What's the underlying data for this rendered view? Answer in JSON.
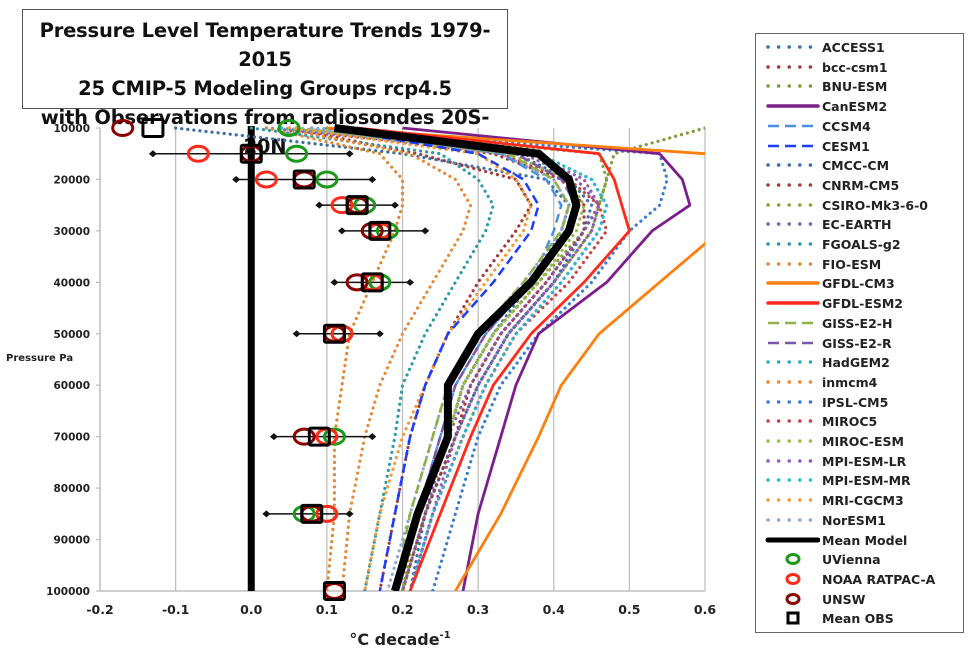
{
  "chart_data": {
    "type": "line",
    "title": [
      "Pressure Level Temperature Trends 1979-2015",
      "25 CMIP-5 Modeling Groups rcp4.5",
      "with Observations from radiosondes 20S-20N"
    ],
    "xlabel": "°C decade",
    "xlabel_superscript": "-1",
    "ylabel": "Pressure Pa",
    "xlim": [
      -0.2,
      0.6
    ],
    "ylim": [
      10000,
      100000
    ],
    "y_inverted": true,
    "x_ticks": [
      "-0.2",
      "-0.1",
      "0.0",
      "0.1",
      "0.2",
      "0.3",
      "0.4",
      "0.5",
      "0.6"
    ],
    "y_ticks": [
      "10000",
      "20000",
      "30000",
      "40000",
      "50000",
      "60000",
      "70000",
      "80000",
      "90000",
      "100000"
    ],
    "grid": "vertical",
    "legend_position": "right",
    "pressure_levels": [
      10000,
      15000,
      20000,
      25000,
      30000,
      40000,
      50000,
      70000,
      85000,
      100000
    ],
    "model_levels": [
      10000,
      15000,
      20000,
      25000,
      30000,
      40000,
      50000,
      60000,
      70000,
      85000,
      100000
    ],
    "series": [
      {
        "name": "ACCESS1",
        "color": "#3d6fa8",
        "style": "dotted",
        "values": [
          -0.1,
          0.2,
          0.39,
          0.42,
          0.41,
          0.37,
          0.32,
          0.28,
          0.26,
          0.22,
          0.19
        ]
      },
      {
        "name": "bcc-csm1",
        "color": "#a23b3b",
        "style": "dotted",
        "values": [
          0.05,
          0.22,
          0.35,
          0.37,
          0.35,
          0.3,
          0.26,
          0.23,
          0.21,
          0.19,
          0.17
        ]
      },
      {
        "name": "BNU-ESM",
        "color": "#7d9a3c",
        "style": "dotted",
        "values": [
          0.6,
          0.48,
          0.47,
          0.46,
          0.45,
          0.4,
          0.34,
          0.3,
          0.27,
          0.23,
          0.2
        ]
      },
      {
        "name": "CanESM2",
        "color": "#7b1f8a",
        "style": "solid",
        "values": [
          0.2,
          0.54,
          0.57,
          0.58,
          0.53,
          0.47,
          0.38,
          0.35,
          0.33,
          0.3,
          0.28
        ]
      },
      {
        "name": "CCSM4",
        "color": "#4a90e2",
        "style": "dashed",
        "values": [
          0.12,
          0.33,
          0.39,
          0.41,
          0.4,
          0.37,
          0.31,
          0.27,
          0.25,
          0.22,
          0.19
        ]
      },
      {
        "name": "CESM1",
        "color": "#1a3dff",
        "style": "dashed",
        "values": [
          0.1,
          0.3,
          0.36,
          0.38,
          0.37,
          0.32,
          0.26,
          0.23,
          0.21,
          0.19,
          0.17
        ]
      },
      {
        "name": "CMCC-CM",
        "color": "#3d6fa8",
        "style": "dotted",
        "values": [
          0.08,
          0.35,
          0.42,
          0.45,
          0.44,
          0.4,
          0.34,
          0.3,
          0.27,
          0.23,
          0.21
        ]
      },
      {
        "name": "CNRM-CM5",
        "color": "#a23b3b",
        "style": "dotted",
        "values": [
          0.06,
          0.32,
          0.41,
          0.44,
          0.44,
          0.39,
          0.33,
          0.29,
          0.27,
          0.23,
          0.2
        ]
      },
      {
        "name": "CSIRO-Mk3-6-0",
        "color": "#86a43d",
        "style": "dotted",
        "values": [
          0.1,
          0.46,
          0.47,
          0.46,
          0.44,
          0.38,
          0.32,
          0.28,
          0.26,
          0.22,
          0.2
        ]
      },
      {
        "name": "EC-EARTH",
        "color": "#8a5aa8",
        "style": "dotted",
        "values": [
          0.02,
          0.36,
          0.43,
          0.46,
          0.44,
          0.39,
          0.33,
          0.29,
          0.26,
          0.23,
          0.2
        ]
      },
      {
        "name": "FGOALS-g2",
        "color": "#2e9aab",
        "style": "dotted",
        "values": [
          0.0,
          0.25,
          0.3,
          0.32,
          0.31,
          0.27,
          0.23,
          0.2,
          0.19,
          0.17,
          0.15
        ]
      },
      {
        "name": "FIO-ESM",
        "color": "#e08a35",
        "style": "dotted",
        "values": [
          0.02,
          0.17,
          0.2,
          0.2,
          0.19,
          0.16,
          0.13,
          0.12,
          0.11,
          0.11,
          0.1
        ]
      },
      {
        "name": "GFDL-CM3",
        "color": "#ff7f0e",
        "style": "solid",
        "values": [
          0.1,
          0.6,
          0.7,
          0.7,
          0.62,
          0.54,
          0.46,
          0.41,
          0.38,
          0.33,
          0.27
        ]
      },
      {
        "name": "GFDL-ESM2",
        "color": "#ff2a1a",
        "style": "solid",
        "values": [
          0.14,
          0.46,
          0.48,
          0.49,
          0.5,
          0.44,
          0.37,
          0.32,
          0.29,
          0.25,
          0.21
        ]
      },
      {
        "name": "GISS-E2-H",
        "color": "#8fb14a",
        "style": "dashed",
        "values": [
          0.1,
          0.34,
          0.4,
          0.42,
          0.41,
          0.36,
          0.3,
          0.26,
          0.24,
          0.21,
          0.19
        ]
      },
      {
        "name": "GISS-E2-R",
        "color": "#7d55a8",
        "style": "dashed",
        "values": [
          0.1,
          0.35,
          0.41,
          0.43,
          0.42,
          0.37,
          0.31,
          0.27,
          0.25,
          0.22,
          0.19
        ]
      },
      {
        "name": "HadGEM2",
        "color": "#2eaac0",
        "style": "dotted",
        "values": [
          0.08,
          0.38,
          0.45,
          0.47,
          0.46,
          0.41,
          0.35,
          0.31,
          0.28,
          0.24,
          0.21
        ]
      },
      {
        "name": "inmcm4",
        "color": "#e8883a",
        "style": "dotted",
        "values": [
          0.04,
          0.21,
          0.27,
          0.29,
          0.28,
          0.24,
          0.2,
          0.17,
          0.15,
          0.13,
          0.12
        ]
      },
      {
        "name": "IPSL-CM5",
        "color": "#3a7ed1",
        "style": "dotted",
        "values": [
          0.08,
          0.54,
          0.55,
          0.54,
          0.5,
          0.45,
          0.38,
          0.33,
          0.3,
          0.27,
          0.24
        ]
      },
      {
        "name": "MIROC5",
        "color": "#c94545",
        "style": "dotted",
        "values": [
          0.06,
          0.33,
          0.42,
          0.46,
          0.47,
          0.42,
          0.35,
          0.31,
          0.28,
          0.24,
          0.21
        ]
      },
      {
        "name": "MIROC-ESM",
        "color": "#9bbb4e",
        "style": "dotted",
        "values": [
          0.06,
          0.34,
          0.42,
          0.44,
          0.43,
          0.38,
          0.32,
          0.28,
          0.26,
          0.22,
          0.19
        ]
      },
      {
        "name": "MPI-ESM-LR",
        "color": "#8e5cbf",
        "style": "dotted",
        "values": [
          0.04,
          0.37,
          0.44,
          0.46,
          0.45,
          0.4,
          0.34,
          0.3,
          0.27,
          0.24,
          0.21
        ]
      },
      {
        "name": "MPI-ESM-MR",
        "color": "#33b5d0",
        "style": "dotted",
        "values": [
          0.04,
          0.38,
          0.45,
          0.47,
          0.46,
          0.41,
          0.35,
          0.31,
          0.28,
          0.24,
          0.21
        ]
      },
      {
        "name": "MRI-CGCM3",
        "color": "#f29a3c",
        "style": "dotted",
        "values": [
          0.05,
          0.3,
          0.35,
          0.37,
          0.36,
          0.31,
          0.26,
          0.23,
          0.2,
          0.17,
          0.15
        ]
      },
      {
        "name": "NorESM1",
        "color": "#8fa9d6",
        "style": "dotted",
        "values": [
          0.08,
          0.33,
          0.4,
          0.42,
          0.41,
          0.36,
          0.3,
          0.26,
          0.24,
          0.21,
          0.18
        ]
      },
      {
        "name": "Mean Model",
        "color": "#000000",
        "style": "thick",
        "values": [
          0.11,
          0.38,
          0.42,
          0.43,
          0.42,
          0.37,
          0.3,
          0.26,
          0.26,
          0.22,
          0.19
        ]
      }
    ],
    "zero_line": {
      "x": 0.0,
      "color": "#000000"
    },
    "observations": [
      {
        "name": "UVienna",
        "color": "#1a9a1a",
        "marker": "circle",
        "values": [
          0.05,
          0.06,
          0.1,
          0.15,
          0.18,
          0.17,
          0.12,
          0.11,
          0.07,
          null
        ]
      },
      {
        "name": "NOAA RATPAC-A",
        "color": "#ff2a1a",
        "marker": "circle",
        "values": [
          null,
          -0.07,
          0.02,
          0.12,
          0.17,
          0.16,
          0.12,
          0.1,
          0.1,
          0.11
        ]
      },
      {
        "name": "UNSW",
        "color": "#8b0000",
        "marker": "circle",
        "values": [
          -0.17,
          0.0,
          0.07,
          0.14,
          0.16,
          0.14,
          0.11,
          0.07,
          0.08,
          0.11
        ]
      },
      {
        "name": "Mean OBS",
        "color": "#000000",
        "marker": "square",
        "values": [
          -0.13,
          0.0,
          0.07,
          0.14,
          0.17,
          0.16,
          0.11,
          0.09,
          0.08,
          0.11
        ]
      }
    ],
    "error_bars": [
      {
        "pressure": 15000,
        "low": -0.13,
        "high": 0.13
      },
      {
        "pressure": 20000,
        "low": -0.02,
        "high": 0.16
      },
      {
        "pressure": 25000,
        "low": 0.09,
        "high": 0.19
      },
      {
        "pressure": 30000,
        "low": 0.12,
        "high": 0.23
      },
      {
        "pressure": 40000,
        "low": 0.11,
        "high": 0.21
      },
      {
        "pressure": 50000,
        "low": 0.06,
        "high": 0.17
      },
      {
        "pressure": 70000,
        "low": 0.03,
        "high": 0.16
      },
      {
        "pressure": 85000,
        "low": 0.02,
        "high": 0.13
      }
    ]
  },
  "legend": {
    "items": [
      {
        "label": "ACCESS1"
      },
      {
        "label": "bcc-csm1"
      },
      {
        "label": "BNU-ESM"
      },
      {
        "label": "CanESM2"
      },
      {
        "label": "CCSM4"
      },
      {
        "label": "CESM1"
      },
      {
        "label": "CMCC-CM"
      },
      {
        "label": "CNRM-CM5"
      },
      {
        "label": "CSIRO-Mk3-6-0"
      },
      {
        "label": "EC-EARTH"
      },
      {
        "label": "FGOALS-g2"
      },
      {
        "label": "FIO-ESM"
      },
      {
        "label": "GFDL-CM3"
      },
      {
        "label": "GFDL-ESM2"
      },
      {
        "label": "GISS-E2-H"
      },
      {
        "label": "GISS-E2-R"
      },
      {
        "label": "HadGEM2"
      },
      {
        "label": "inmcm4"
      },
      {
        "label": "IPSL-CM5"
      },
      {
        "label": "MIROC5"
      },
      {
        "label": "MIROC-ESM"
      },
      {
        "label": "MPI-ESM-LR"
      },
      {
        "label": "MPI-ESM-MR"
      },
      {
        "label": "MRI-CGCM3"
      },
      {
        "label": "NorESM1"
      },
      {
        "label": "Mean Model"
      },
      {
        "label": "UVienna"
      },
      {
        "label": "NOAA RATPAC-A"
      },
      {
        "label": "UNSW"
      },
      {
        "label": "Mean OBS"
      }
    ]
  }
}
